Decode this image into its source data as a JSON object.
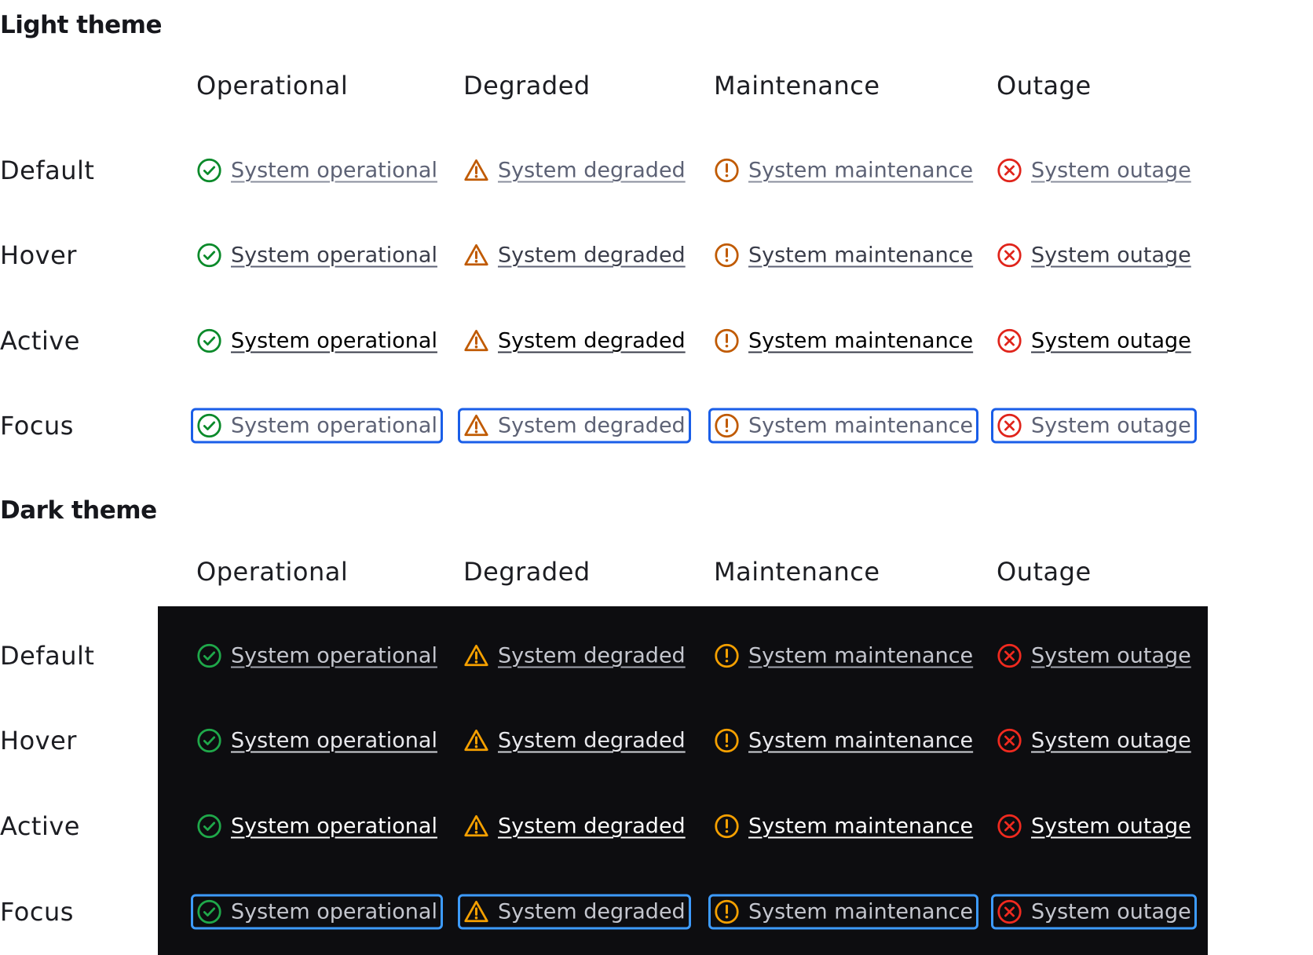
{
  "columns": [
    "Operational",
    "Degraded",
    "Maintenance",
    "Outage"
  ],
  "states": [
    "Default",
    "Hover",
    "Active",
    "Focus"
  ],
  "links": {
    "operational": {
      "label": "System operational",
      "icon": "check-circle-icon"
    },
    "degraded": {
      "label": "System degraded",
      "icon": "warning-triangle-icon"
    },
    "maintenance": {
      "label": "System maintenance",
      "icon": "exclamation-circle-icon"
    },
    "outage": {
      "label": "System outage",
      "icon": "x-circle-icon"
    }
  },
  "themes": [
    {
      "key": "light",
      "title": "Light theme",
      "text_colors": {
        "Default": "#5d6275",
        "Hover": "#3a3d4a",
        "Active": "#000000",
        "Focus": "#5d6275"
      },
      "underline_colors": {
        "Default": "#8a8e9c",
        "Hover": "#5d6275",
        "Active": "#3a3d4a"
      },
      "focus_ring": "#1a5ee8",
      "icon_colors": {
        "operational": "#0a8a2a",
        "degraded": "#c05a00",
        "maintenance": "#c05a00",
        "outage": "#e0241b"
      }
    },
    {
      "key": "dark",
      "title": "Dark theme",
      "background": "#0d0d10",
      "text_colors": {
        "Default": "#c4c6ce",
        "Hover": "#e8e8ec",
        "Active": "#ffffff",
        "Focus": "#c4c6ce"
      },
      "underline_colors": {
        "Default": "#a0a3ad",
        "Hover": "#d0d2d8",
        "Active": "#ffffff"
      },
      "focus_ring": "#3d9bff",
      "icon_colors": {
        "operational": "#1fa84a",
        "degraded": "#f5a000",
        "maintenance": "#f5a000",
        "outage": "#f02a1f"
      }
    }
  ]
}
